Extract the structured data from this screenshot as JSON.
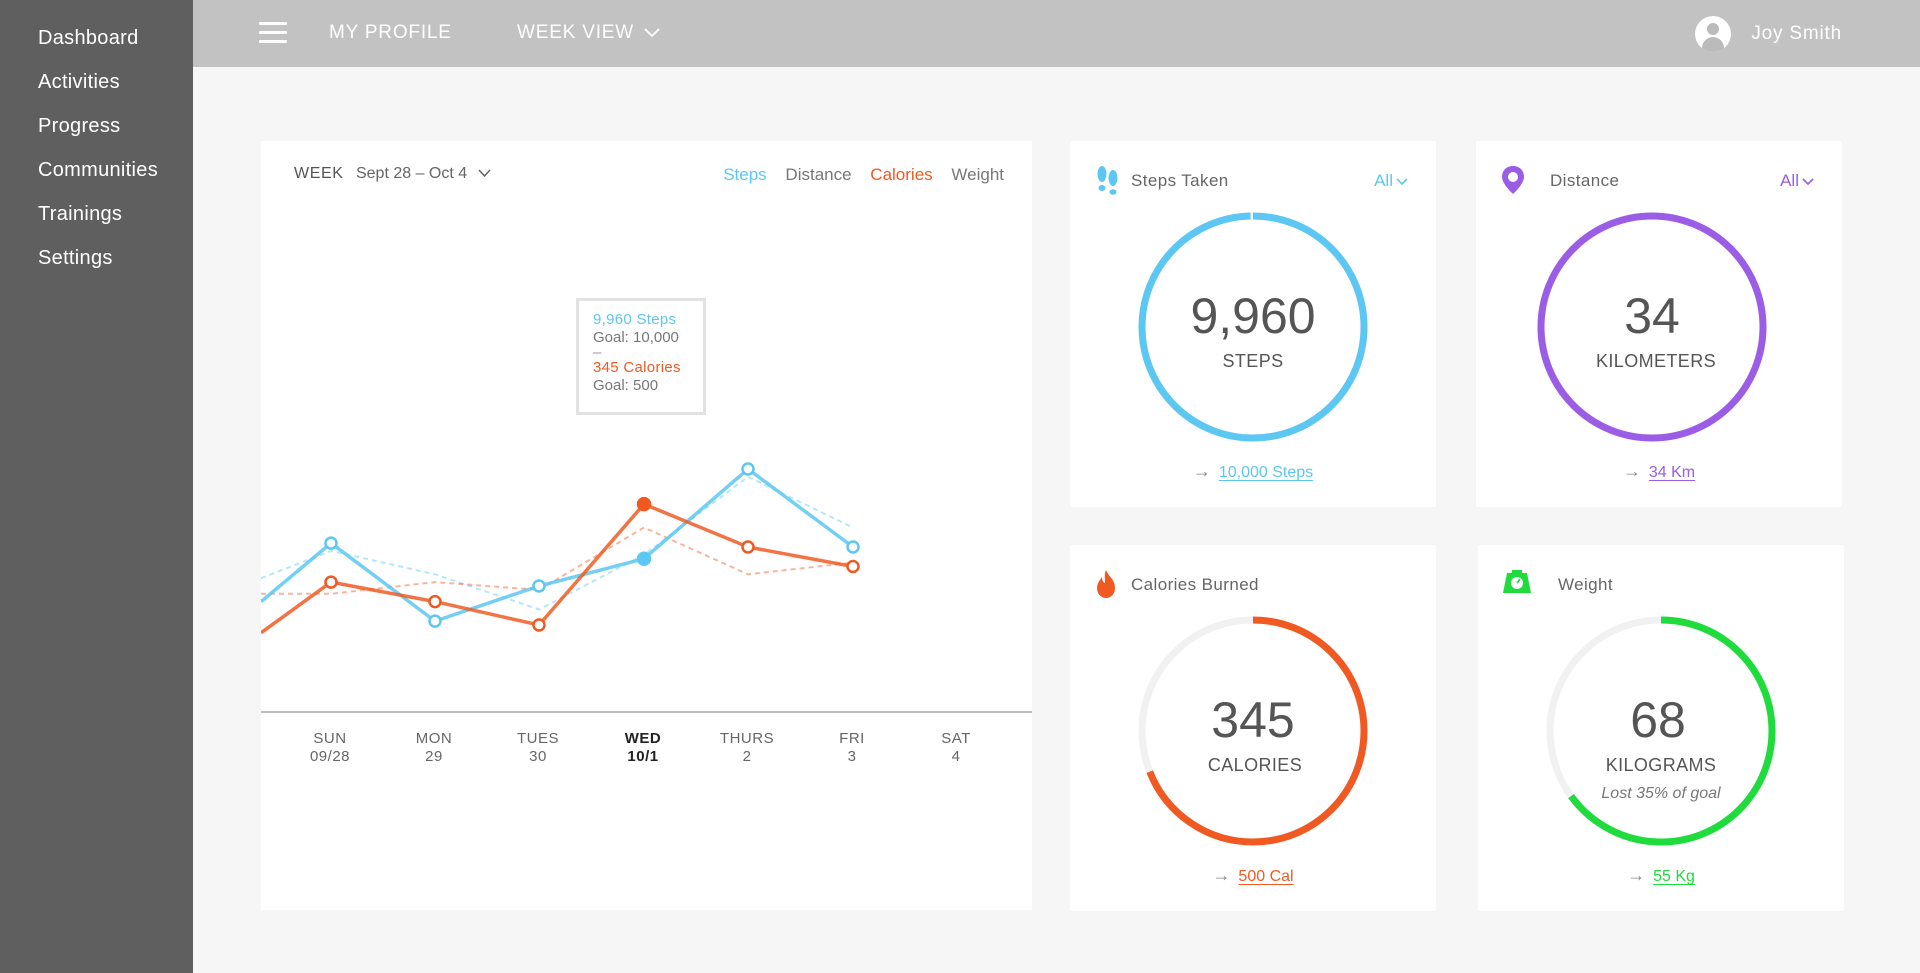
{
  "sidebar": {
    "items": [
      "Dashboard",
      "Activities",
      "Progress",
      "Communities",
      "Trainings",
      "Settings"
    ]
  },
  "topbar": {
    "profile": "MY PROFILE",
    "week_view": "WEEK VIEW",
    "user_name": "Joy Smith"
  },
  "chart": {
    "week_label": "WEEK",
    "week_range": "Sept 28 – Oct 4",
    "tabs": {
      "steps": "Steps",
      "distance": "Distance",
      "calories": "Calories",
      "weight": "Weight"
    },
    "tooltip": {
      "steps": "9,960 Steps",
      "steps_goal": "Goal: 10,000",
      "separator": "–",
      "calories": "345 Calories",
      "calories_goal": "Goal: 500"
    },
    "days": [
      {
        "name": "SUN",
        "date": "09/28"
      },
      {
        "name": "MON",
        "date": "29"
      },
      {
        "name": "TUES",
        "date": "30"
      },
      {
        "name": "WED",
        "date": "10/1"
      },
      {
        "name": "THURS",
        "date": "2"
      },
      {
        "name": "FRI",
        "date": "3"
      },
      {
        "name": "SAT",
        "date": "4"
      }
    ],
    "active_day": 3
  },
  "chart_data": {
    "type": "line",
    "categories": [
      "SUN 09/28",
      "MON 29",
      "TUES 30",
      "WED 10/1",
      "THURS 2",
      "FRI 3",
      "SAT 4"
    ],
    "ylim": [
      0,
      100
    ],
    "series": [
      {
        "name": "Steps",
        "color": "#5cc7f2",
        "lead_in": 26,
        "values": [
          41,
          21,
          30,
          37,
          60,
          40,
          null
        ]
      },
      {
        "name": "Calories",
        "color": "#f05a22",
        "lead_in": 18,
        "values": [
          31,
          26,
          20,
          51,
          40,
          35,
          null
        ]
      },
      {
        "name": "Steps goal",
        "color": "#5cc7f2",
        "dashed": true,
        "lead_in": 32,
        "values": [
          39,
          33,
          24,
          38,
          58,
          45,
          null
        ]
      },
      {
        "name": "Calories goal",
        "color": "#f05a22",
        "dashed": true,
        "lead_in": 28,
        "values": [
          28,
          31,
          29,
          45,
          33,
          36,
          null
        ]
      }
    ]
  },
  "cards": {
    "steps": {
      "title": "Steps Taken",
      "filter": "All",
      "value": "9,960",
      "unit": "STEPS",
      "link": "10,000 Steps",
      "progress": 0.996,
      "color": "#5cc7f2"
    },
    "distance": {
      "title": "Distance",
      "filter": "All",
      "value": "34",
      "unit": "KILOMETERS",
      "link": "34 Km",
      "progress": 1.0,
      "color": "#9b5de5"
    },
    "calories": {
      "title": "Calories Burned",
      "value": "345",
      "unit": "CALORIES",
      "link": "500 Cal",
      "progress": 0.69,
      "color": "#f05a22"
    },
    "weight": {
      "title": "Weight",
      "value": "68",
      "unit": "KILOGRAMS",
      "note": "Lost 35% of goal",
      "link": "55 Kg",
      "progress": 0.65,
      "color": "#1fdc3c"
    }
  }
}
